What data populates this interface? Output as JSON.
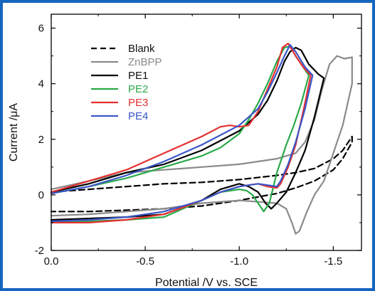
{
  "chart_data": {
    "type": "line",
    "xlabel": "Potential /V vs. SCE",
    "ylabel": "Current /μA",
    "xlim": [
      0.0,
      -1.65
    ],
    "ylim": [
      -2,
      6.5
    ],
    "x_ticks": [
      0.0,
      -0.5,
      -1.0,
      -1.5
    ],
    "x_tick_labels": [
      "0.0",
      "-0.5",
      "-1.0",
      "-1.5"
    ],
    "y_ticks": [
      -2,
      0,
      2,
      4,
      6
    ],
    "y_tick_labels": [
      "-2",
      "0",
      "2",
      "4",
      "6"
    ],
    "grid": false,
    "legend_position": "top-left",
    "series": [
      {
        "name": "Blank",
        "color": "#000000",
        "dash": "dashed",
        "x": [
          0.0,
          -0.2,
          -0.4,
          -0.6,
          -0.8,
          -1.0,
          -1.2,
          -1.3,
          -1.4,
          -1.5,
          -1.55,
          -1.6,
          -1.6,
          -1.55,
          -1.5,
          -1.4,
          -1.3,
          -1.2,
          -1.0,
          -0.8,
          -0.6,
          -0.4,
          -0.2,
          0.0
        ],
        "y": [
          0.1,
          0.2,
          0.3,
          0.4,
          0.45,
          0.55,
          0.7,
          0.8,
          0.95,
          1.3,
          1.6,
          2.1,
          1.9,
          1.3,
          0.9,
          0.5,
          0.25,
          0.05,
          -0.2,
          -0.4,
          -0.5,
          -0.55,
          -0.6,
          -0.6
        ]
      },
      {
        "name": "ZnBPP",
        "color": "#8a8a8a",
        "dash": "solid",
        "x": [
          0.0,
          -0.2,
          -0.4,
          -0.6,
          -0.8,
          -1.0,
          -1.2,
          -1.3,
          -1.35,
          -1.4,
          -1.44,
          -1.48,
          -1.52,
          -1.56,
          -1.6,
          -1.6,
          -1.55,
          -1.5,
          -1.45,
          -1.4,
          -1.36,
          -1.32,
          -1.3,
          -1.28,
          -1.25,
          -1.2,
          -1.0,
          -0.8,
          -0.6,
          -0.4,
          -0.2,
          0.0
        ],
        "y": [
          0.2,
          0.5,
          0.8,
          0.9,
          1.0,
          1.1,
          1.3,
          1.5,
          1.9,
          2.7,
          3.8,
          4.7,
          5.0,
          4.9,
          4.95,
          4.0,
          2.5,
          1.5,
          0.5,
          0.0,
          -0.6,
          -1.3,
          -1.4,
          -1.0,
          -0.5,
          -0.3,
          -0.2,
          -0.3,
          -0.5,
          -0.6,
          -0.7,
          -0.75
        ]
      },
      {
        "name": "PE1",
        "color": "#000000",
        "dash": "solid",
        "x": [
          0.0,
          -0.2,
          -0.4,
          -0.6,
          -0.8,
          -1.0,
          -1.1,
          -1.15,
          -1.2,
          -1.24,
          -1.27,
          -1.3,
          -1.33,
          -1.37,
          -1.42,
          -1.45,
          -1.45,
          -1.4,
          -1.35,
          -1.3,
          -1.25,
          -1.2,
          -1.17,
          -1.14,
          -1.1,
          -1.05,
          -1.0,
          -0.9,
          -0.8,
          -0.6,
          -0.4,
          -0.2,
          0.0
        ],
        "y": [
          0.1,
          0.4,
          0.8,
          1.1,
          1.6,
          2.3,
          2.9,
          3.4,
          4.1,
          4.8,
          5.15,
          5.3,
          5.2,
          4.7,
          4.35,
          4.2,
          4.2,
          2.8,
          1.6,
          0.8,
          0.1,
          -0.3,
          -0.5,
          -0.3,
          0.1,
          0.3,
          0.4,
          0.2,
          -0.2,
          -0.7,
          -0.8,
          -0.85,
          -0.9
        ]
      },
      {
        "name": "PE2",
        "color": "#2aaa4a",
        "dash": "solid",
        "x": [
          0.0,
          -0.2,
          -0.4,
          -0.6,
          -0.8,
          -0.9,
          -1.0,
          -1.05,
          -1.1,
          -1.15,
          -1.2,
          -1.24,
          -1.27,
          -1.3,
          -1.34,
          -1.37,
          -1.37,
          -1.33,
          -1.29,
          -1.25,
          -1.2,
          -1.16,
          -1.13,
          -1.1,
          -1.07,
          -1.04,
          -1.0,
          -0.9,
          -0.8,
          -0.6,
          -0.4,
          -0.2,
          0.0
        ],
        "y": [
          0.05,
          0.3,
          0.6,
          1.0,
          1.4,
          1.7,
          2.2,
          2.7,
          3.3,
          4.0,
          4.8,
          5.3,
          5.35,
          5.0,
          4.6,
          4.3,
          4.3,
          3.3,
          2.5,
          1.8,
          0.8,
          -0.3,
          -0.6,
          -0.3,
          0.0,
          0.15,
          0.2,
          0.1,
          -0.2,
          -0.8,
          -0.9,
          -0.95,
          -1.0
        ]
      },
      {
        "name": "PE3",
        "color": "#e53030",
        "dash": "solid",
        "x": [
          0.0,
          -0.2,
          -0.4,
          -0.6,
          -0.8,
          -0.9,
          -0.95,
          -1.0,
          -1.05,
          -1.1,
          -1.15,
          -1.2,
          -1.23,
          -1.26,
          -1.3,
          -1.34,
          -1.38,
          -1.38,
          -1.34,
          -1.3,
          -1.26,
          -1.22,
          -1.2,
          -1.15,
          -1.1,
          -1.05,
          -1.0,
          -0.9,
          -0.8,
          -0.6,
          -0.4,
          -0.2,
          0.0
        ],
        "y": [
          0.1,
          0.5,
          0.9,
          1.5,
          2.1,
          2.45,
          2.5,
          2.45,
          2.5,
          3.0,
          3.8,
          4.6,
          5.3,
          5.45,
          5.0,
          4.6,
          4.3,
          4.3,
          3.0,
          1.8,
          1.0,
          0.4,
          0.25,
          0.3,
          0.4,
          0.35,
          0.3,
          0.1,
          -0.2,
          -0.7,
          -0.9,
          -1.0,
          -1.0
        ]
      },
      {
        "name": "PE4",
        "color": "#3a56c8",
        "dash": "solid",
        "x": [
          0.0,
          -0.2,
          -0.4,
          -0.6,
          -0.8,
          -1.0,
          -1.1,
          -1.15,
          -1.2,
          -1.24,
          -1.27,
          -1.3,
          -1.35,
          -1.39,
          -1.39,
          -1.35,
          -1.3,
          -1.26,
          -1.22,
          -1.2,
          -1.15,
          -1.1,
          -1.05,
          -1.0,
          -0.9,
          -0.8,
          -0.6,
          -0.4,
          -0.2,
          0.0
        ],
        "y": [
          0.05,
          0.3,
          0.7,
          1.2,
          1.8,
          2.5,
          3.1,
          3.7,
          4.4,
          5.0,
          5.4,
          5.15,
          4.6,
          4.3,
          4.3,
          3.1,
          1.9,
          1.1,
          0.5,
          0.3,
          0.35,
          0.4,
          0.35,
          0.3,
          0.1,
          -0.2,
          -0.6,
          -0.8,
          -0.9,
          -0.95
        ]
      }
    ]
  }
}
